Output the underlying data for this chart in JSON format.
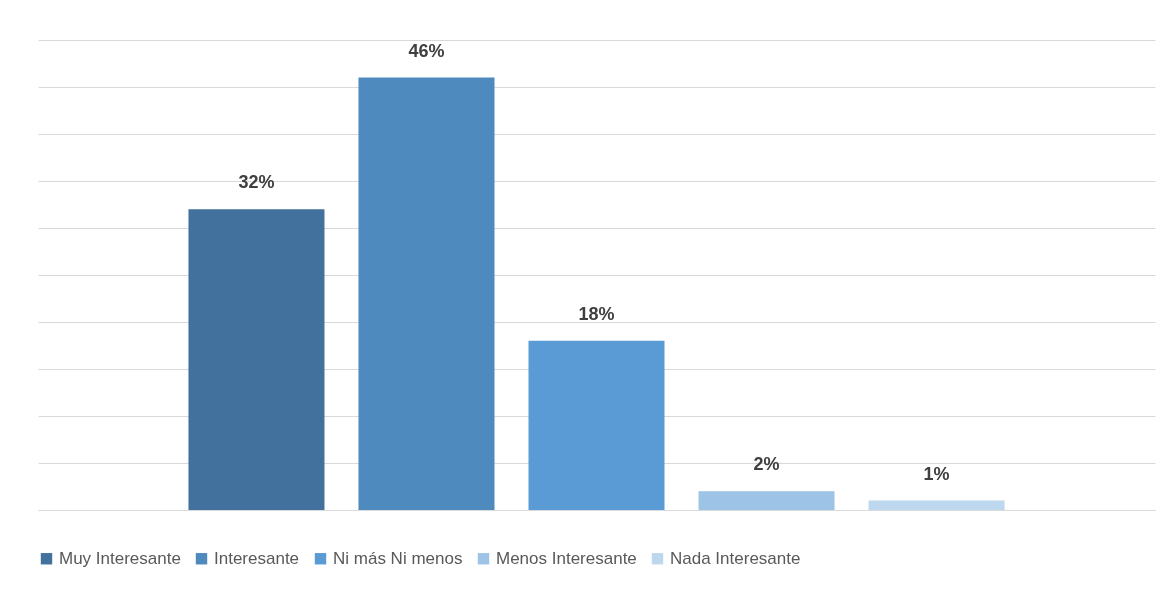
{
  "chart_data": {
    "type": "bar",
    "categories": [
      null
    ],
    "ylim": [
      0,
      50
    ],
    "yticks": [
      {
        "value": 0,
        "label": null
      },
      {
        "value": 5,
        "label": null
      },
      {
        "value": 10,
        "label": null
      },
      {
        "value": 15,
        "label": null
      },
      {
        "value": 20,
        "label": null
      },
      {
        "value": 25,
        "label": null
      },
      {
        "value": 30,
        "label": null
      },
      {
        "value": 35,
        "label": null
      },
      {
        "value": 40,
        "label": null
      },
      {
        "value": 45,
        "label": null
      },
      {
        "value": 50,
        "label": null
      }
    ],
    "grid": "y",
    "legend": "bottom",
    "series": [
      {
        "name": "Muy Interesante",
        "color": "#41719c",
        "values": [
          32
        ],
        "value_labels": [
          "32%"
        ]
      },
      {
        "name": "Interesante",
        "color": "#4e8abe",
        "values": [
          46
        ],
        "value_labels": [
          "46%"
        ]
      },
      {
        "name": "Ni más Ni menos",
        "color": "#5b9bd5",
        "values": [
          18
        ],
        "value_labels": [
          "18%"
        ]
      },
      {
        "name": "Menos Interesante",
        "color": "#9dc3e6",
        "values": [
          2
        ],
        "value_labels": [
          "2%"
        ]
      },
      {
        "name": "Nada Interesante",
        "color": "#bdd7ee",
        "values": [
          1
        ],
        "value_labels": [
          "1%"
        ]
      }
    ]
  }
}
